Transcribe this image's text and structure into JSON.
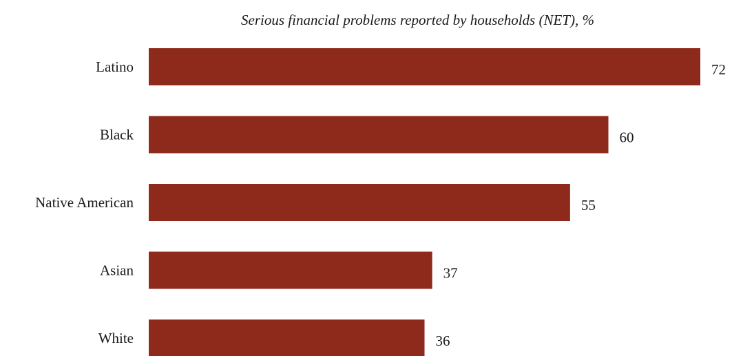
{
  "chart_data": {
    "type": "bar",
    "orientation": "horizontal",
    "title": "Serious financial problems reported by households (NET), %",
    "categories": [
      "Latino",
      "Black",
      "Native American",
      "Asian",
      "White"
    ],
    "values": [
      72,
      60,
      55,
      37,
      36
    ],
    "xlim": [
      0,
      72
    ],
    "grid": false,
    "bar_color": "#8e2a1b"
  }
}
